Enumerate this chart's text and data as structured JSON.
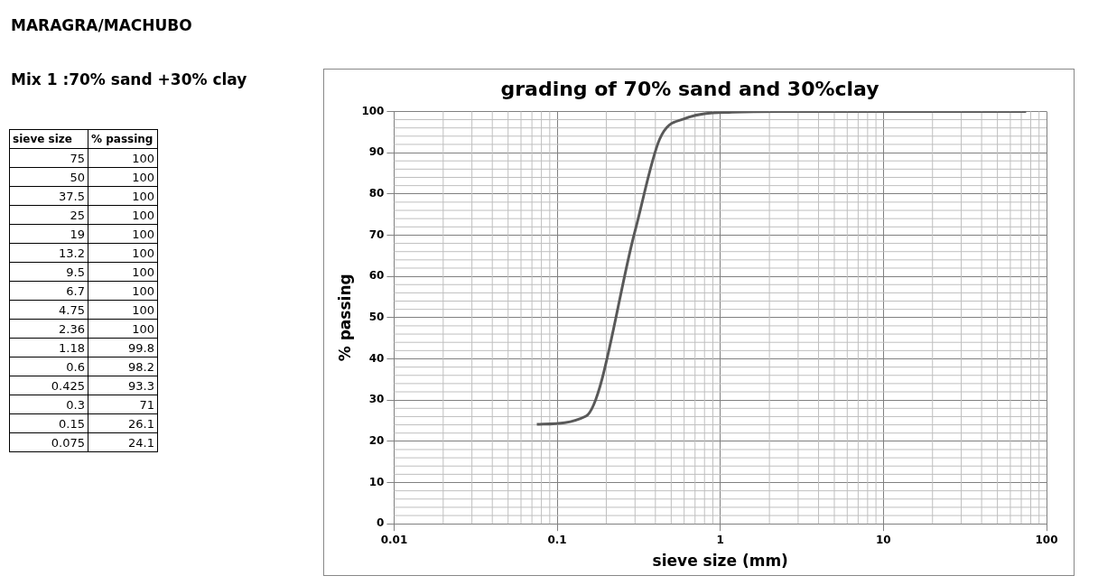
{
  "chart_data": [
    {
      "type": "other",
      "title": "MARAGRA/MACHUBO",
      "subtitle": "Mix 1 :70% sand +30% clay",
      "xlabel": "sieve size",
      "ylabel": "% passing",
      "categories": [
        "75",
        "50",
        "37.5",
        "25",
        "19",
        "13.2",
        "9.5",
        "6.7",
        "4.75",
        "2.36",
        "1.18",
        "0.6",
        "0.425",
        "0.3",
        "0.15",
        "0.075"
      ],
      "values": [
        100,
        100,
        100,
        100,
        100,
        100,
        100,
        100,
        100,
        100,
        99.8,
        98.2,
        93.3,
        71,
        26.1,
        24.1
      ],
      "data_labels": true
    },
    {
      "type": "line",
      "title": "grading of 70% sand and 30%clay",
      "xlabel": "sieve size (mm)",
      "ylabel": "% passing",
      "x": [
        75,
        50,
        37.5,
        25,
        19,
        13.2,
        9.5,
        6.7,
        4.75,
        2.36,
        1.18,
        0.6,
        0.425,
        0.3,
        0.15,
        0.075
      ],
      "series": [
        {
          "color": "#595959",
          "values": [
            100,
            100,
            100,
            100,
            100,
            100,
            100,
            100,
            100,
            100,
            99.8,
            98.2,
            93.3,
            71,
            26.1,
            24.1
          ]
        }
      ],
      "log": "x",
      "grid": true,
      "legend": false,
      "marker": "none",
      "line_style": "solid",
      "xlim": [
        0.01,
        100
      ],
      "xticks": [
        0.01,
        0.1,
        1,
        10,
        100
      ],
      "ylim": [
        0,
        100
      ],
      "yticks": [
        0,
        10,
        20,
        30,
        40,
        50,
        60,
        70,
        80,
        90,
        100
      ]
    }
  ]
}
